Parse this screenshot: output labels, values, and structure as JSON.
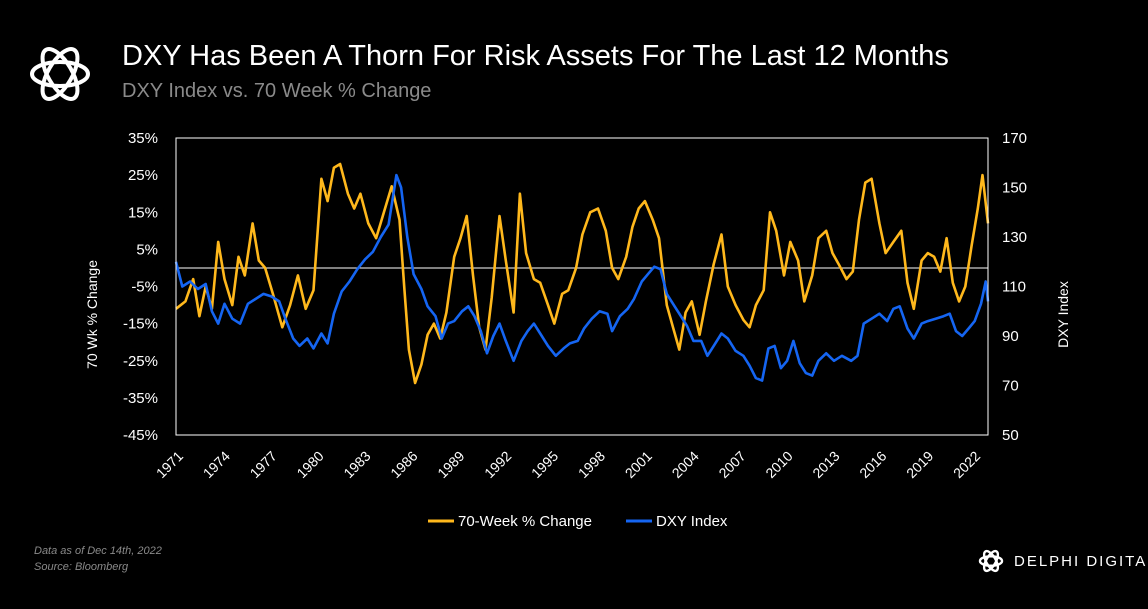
{
  "header": {
    "title": "DXY Has Been A Thorn For Risk Assets For The Last 12 Months",
    "subtitle": "DXY Index vs. 70 Week % Change"
  },
  "footer": {
    "note": "Data as of Dec 14th, 2022",
    "source": "Source: Bloomberg",
    "brand": "DELPHI DIGITAL",
    "logo_icon": "delphi-knot-icon"
  },
  "colors": {
    "background": "#000000",
    "change_series": "#FFB81C",
    "dxy_series": "#1565F2",
    "zero_line": "#FFFFFF",
    "plot_border": "#FFFFFF"
  },
  "chart_data": {
    "type": "line",
    "ylabel_left": "70 Wk % Change",
    "ylabel_right": "DXY Index",
    "ylim_left": [
      -45,
      35
    ],
    "ylim_right": [
      50,
      170
    ],
    "xlim": [
      1971,
      2022.95
    ],
    "left_ticks": [
      "35%",
      "25%",
      "15%",
      "5%",
      "-5%",
      "-15%",
      "-25%",
      "-35%",
      "-45%"
    ],
    "right_ticks": [
      "170",
      "150",
      "130",
      "110",
      "90",
      "70",
      "50"
    ],
    "x_ticks": [
      "1971",
      "1974",
      "1977",
      "1980",
      "1983",
      "1986",
      "1989",
      "1992",
      "1995",
      "1998",
      "2001",
      "2004",
      "2007",
      "2010",
      "2013",
      "2016",
      "2019",
      "2022"
    ],
    "grid": false,
    "zero_line": true,
    "legend_position": "bottom-center",
    "series": [
      {
        "name": "70-Week % Change",
        "axis": "left",
        "points": [
          [
            1971.0,
            -11
          ],
          [
            1971.6,
            -9
          ],
          [
            1972.1,
            -3
          ],
          [
            1972.5,
            -13
          ],
          [
            1972.9,
            -5
          ],
          [
            1973.3,
            -11
          ],
          [
            1973.7,
            7
          ],
          [
            1974.1,
            -3
          ],
          [
            1974.6,
            -10
          ],
          [
            1975.0,
            3
          ],
          [
            1975.4,
            -2
          ],
          [
            1975.9,
            12
          ],
          [
            1976.3,
            2
          ],
          [
            1976.7,
            0
          ],
          [
            1977.2,
            -7
          ],
          [
            1977.8,
            -16
          ],
          [
            1978.3,
            -10
          ],
          [
            1978.8,
            -2
          ],
          [
            1979.3,
            -11
          ],
          [
            1979.8,
            -6
          ],
          [
            1980.3,
            24
          ],
          [
            1980.7,
            18
          ],
          [
            1981.1,
            27
          ],
          [
            1981.5,
            28
          ],
          [
            1982.0,
            20
          ],
          [
            1982.4,
            16
          ],
          [
            1982.8,
            20
          ],
          [
            1983.3,
            12
          ],
          [
            1983.8,
            8
          ],
          [
            1984.3,
            15
          ],
          [
            1984.8,
            22
          ],
          [
            1985.3,
            13
          ],
          [
            1985.6,
            -5
          ],
          [
            1985.9,
            -22
          ],
          [
            1986.3,
            -31
          ],
          [
            1986.7,
            -26
          ],
          [
            1987.1,
            -18
          ],
          [
            1987.5,
            -15
          ],
          [
            1987.9,
            -19
          ],
          [
            1988.3,
            -12
          ],
          [
            1988.8,
            3
          ],
          [
            1989.2,
            8
          ],
          [
            1989.6,
            14
          ],
          [
            1990.0,
            -2
          ],
          [
            1990.4,
            -16
          ],
          [
            1990.8,
            -22
          ],
          [
            1991.2,
            -8
          ],
          [
            1991.7,
            14
          ],
          [
            1992.1,
            2
          ],
          [
            1992.6,
            -12
          ],
          [
            1993.0,
            20
          ],
          [
            1993.4,
            4
          ],
          [
            1993.9,
            -3
          ],
          [
            1994.3,
            -4
          ],
          [
            1994.8,
            -10
          ],
          [
            1995.2,
            -15
          ],
          [
            1995.7,
            -7
          ],
          [
            1996.1,
            -6
          ],
          [
            1996.6,
            0
          ],
          [
            1997.0,
            9
          ],
          [
            1997.5,
            15
          ],
          [
            1998.0,
            16
          ],
          [
            1998.5,
            10
          ],
          [
            1998.9,
            0
          ],
          [
            1999.3,
            -3
          ],
          [
            1999.8,
            3
          ],
          [
            2000.2,
            11
          ],
          [
            2000.6,
            16
          ],
          [
            2001.0,
            18
          ],
          [
            2001.5,
            13
          ],
          [
            2001.9,
            8
          ],
          [
            2002.4,
            -10
          ],
          [
            2002.8,
            -16
          ],
          [
            2003.2,
            -22
          ],
          [
            2003.6,
            -12
          ],
          [
            2004.0,
            -9
          ],
          [
            2004.5,
            -18
          ],
          [
            2004.9,
            -9
          ],
          [
            2005.4,
            1
          ],
          [
            2005.9,
            9
          ],
          [
            2006.3,
            -5
          ],
          [
            2006.8,
            -10
          ],
          [
            2007.3,
            -14
          ],
          [
            2007.7,
            -16
          ],
          [
            2008.1,
            -10
          ],
          [
            2008.6,
            -6
          ],
          [
            2009.0,
            15
          ],
          [
            2009.4,
            10
          ],
          [
            2009.9,
            -2
          ],
          [
            2010.3,
            7
          ],
          [
            2010.8,
            2
          ],
          [
            2011.2,
            -9
          ],
          [
            2011.7,
            -2
          ],
          [
            2012.1,
            8
          ],
          [
            2012.6,
            10
          ],
          [
            2013.0,
            4
          ],
          [
            2013.4,
            1
          ],
          [
            2013.9,
            -3
          ],
          [
            2014.3,
            -1
          ],
          [
            2014.7,
            13
          ],
          [
            2015.1,
            23
          ],
          [
            2015.5,
            24
          ],
          [
            2016.0,
            12
          ],
          [
            2016.4,
            4
          ],
          [
            2016.9,
            7
          ],
          [
            2017.4,
            10
          ],
          [
            2017.8,
            -4
          ],
          [
            2018.2,
            -11
          ],
          [
            2018.7,
            2
          ],
          [
            2019.1,
            4
          ],
          [
            2019.5,
            3
          ],
          [
            2019.9,
            -1
          ],
          [
            2020.3,
            8
          ],
          [
            2020.7,
            -4
          ],
          [
            2021.1,
            -9
          ],
          [
            2021.5,
            -5
          ],
          [
            2021.9,
            6
          ],
          [
            2022.3,
            16
          ],
          [
            2022.6,
            25
          ],
          [
            2022.95,
            12
          ]
        ]
      },
      {
        "name": "DXY Index",
        "axis": "right",
        "points": [
          [
            1971.0,
            120
          ],
          [
            1971.4,
            110
          ],
          [
            1971.9,
            112
          ],
          [
            1972.4,
            109
          ],
          [
            1972.9,
            111
          ],
          [
            1973.3,
            100
          ],
          [
            1973.7,
            95
          ],
          [
            1974.1,
            103
          ],
          [
            1974.6,
            97
          ],
          [
            1975.1,
            95
          ],
          [
            1975.6,
            103
          ],
          [
            1976.1,
            105
          ],
          [
            1976.6,
            107
          ],
          [
            1977.1,
            106
          ],
          [
            1977.6,
            104
          ],
          [
            1978.0,
            97
          ],
          [
            1978.5,
            89
          ],
          [
            1978.9,
            86
          ],
          [
            1979.4,
            89
          ],
          [
            1979.8,
            85
          ],
          [
            1980.3,
            91
          ],
          [
            1980.7,
            87
          ],
          [
            1981.1,
            99
          ],
          [
            1981.6,
            108
          ],
          [
            1982.1,
            112
          ],
          [
            1982.6,
            117
          ],
          [
            1983.1,
            121
          ],
          [
            1983.6,
            124
          ],
          [
            1984.1,
            130
          ],
          [
            1984.6,
            135
          ],
          [
            1985.1,
            155
          ],
          [
            1985.4,
            150
          ],
          [
            1985.8,
            130
          ],
          [
            1986.2,
            115
          ],
          [
            1986.7,
            109
          ],
          [
            1987.1,
            102
          ],
          [
            1987.6,
            98
          ],
          [
            1988.0,
            89
          ],
          [
            1988.4,
            95
          ],
          [
            1988.8,
            96
          ],
          [
            1989.3,
            100
          ],
          [
            1989.7,
            102
          ],
          [
            1990.1,
            98
          ],
          [
            1990.5,
            92
          ],
          [
            1990.9,
            83
          ],
          [
            1991.3,
            90
          ],
          [
            1991.7,
            95
          ],
          [
            1992.1,
            88
          ],
          [
            1992.6,
            80
          ],
          [
            1993.1,
            88
          ],
          [
            1993.5,
            92
          ],
          [
            1993.9,
            95
          ],
          [
            1994.3,
            91
          ],
          [
            1994.8,
            86
          ],
          [
            1995.3,
            82
          ],
          [
            1995.8,
            85
          ],
          [
            1996.2,
            87
          ],
          [
            1996.7,
            88
          ],
          [
            1997.1,
            93
          ],
          [
            1997.6,
            97
          ],
          [
            1998.1,
            100
          ],
          [
            1998.6,
            99
          ],
          [
            1998.9,
            92
          ],
          [
            1999.4,
            98
          ],
          [
            1999.9,
            101
          ],
          [
            2000.3,
            105
          ],
          [
            2000.8,
            112
          ],
          [
            2001.2,
            115
          ],
          [
            2001.6,
            118
          ],
          [
            2002.0,
            117
          ],
          [
            2002.4,
            107
          ],
          [
            2002.9,
            102
          ],
          [
            2003.3,
            98
          ],
          [
            2003.7,
            94
          ],
          [
            2004.1,
            88
          ],
          [
            2004.6,
            88
          ],
          [
            2005.0,
            82
          ],
          [
            2005.4,
            86
          ],
          [
            2005.9,
            91
          ],
          [
            2006.3,
            89
          ],
          [
            2006.8,
            84
          ],
          [
            2007.3,
            82
          ],
          [
            2007.7,
            78
          ],
          [
            2008.1,
            73
          ],
          [
            2008.5,
            72
          ],
          [
            2008.9,
            85
          ],
          [
            2009.3,
            86
          ],
          [
            2009.7,
            77
          ],
          [
            2010.1,
            80
          ],
          [
            2010.5,
            88
          ],
          [
            2010.9,
            79
          ],
          [
            2011.3,
            75
          ],
          [
            2011.7,
            74
          ],
          [
            2012.1,
            80
          ],
          [
            2012.6,
            83
          ],
          [
            2013.1,
            80
          ],
          [
            2013.6,
            82
          ],
          [
            2014.2,
            80
          ],
          [
            2014.6,
            82
          ],
          [
            2015.0,
            95
          ],
          [
            2015.5,
            97
          ],
          [
            2016.0,
            99
          ],
          [
            2016.5,
            96
          ],
          [
            2016.9,
            101
          ],
          [
            2017.3,
            102
          ],
          [
            2017.8,
            93
          ],
          [
            2018.2,
            89
          ],
          [
            2018.7,
            95
          ],
          [
            2019.1,
            96
          ],
          [
            2019.6,
            97
          ],
          [
            2020.1,
            98
          ],
          [
            2020.5,
            99
          ],
          [
            2020.9,
            92
          ],
          [
            2021.3,
            90
          ],
          [
            2021.7,
            93
          ],
          [
            2022.1,
            96
          ],
          [
            2022.5,
            103
          ],
          [
            2022.8,
            112
          ],
          [
            2022.95,
            104
          ]
        ]
      }
    ]
  }
}
